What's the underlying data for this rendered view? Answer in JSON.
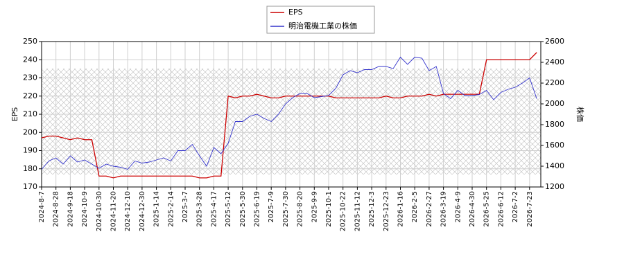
{
  "chart_data": {
    "type": "line",
    "categories": [
      "2024-8-7",
      null,
      "2024-8-28",
      null,
      "2024-9-18",
      null,
      "2024-10-9",
      null,
      "2024-10-30",
      null,
      "2024-11-20",
      null,
      "2024-12-10",
      null,
      "2024-12-30",
      null,
      "2025-1-14",
      null,
      "2025-2-14",
      null,
      "2025-3-7",
      null,
      "2025-3-28",
      null,
      "2025-4-17",
      null,
      "2025-5-12",
      null,
      "2025-5-30",
      null,
      "2025-6-19",
      null,
      "2025-7-9",
      null,
      "2025-7-30",
      null,
      "2025-8-20",
      null,
      "2025-9-9",
      null,
      "2025-10-1",
      null,
      "2025-10-22",
      null,
      "2025-11-12",
      null,
      "2025-12-3",
      null,
      "2025-12-23",
      null,
      "2026-1-16",
      null,
      "2026-2-5",
      null,
      "2026-2-27",
      null,
      "2026-3-19",
      null,
      "2026-4-9",
      null,
      "2026-4-30",
      null,
      "2026-5-25",
      null,
      "2026-6-12",
      null,
      "2026-7-2",
      null,
      "2026-7-23",
      null
    ],
    "series": [
      {
        "name": "EPS",
        "color": "#cc0000",
        "axis": "y",
        "values": [
          197,
          198,
          198,
          197,
          196,
          197,
          196,
          196,
          176,
          176,
          175,
          176,
          176,
          176,
          176,
          176,
          176,
          176,
          176,
          176,
          176,
          176,
          175,
          175,
          176,
          176,
          220,
          219,
          220,
          220,
          221,
          220,
          219,
          219,
          220,
          220,
          220,
          220,
          220,
          220,
          220,
          219,
          219,
          219,
          219,
          219,
          219,
          219,
          220,
          219,
          219,
          220,
          220,
          220,
          221,
          220,
          221,
          221,
          221,
          221,
          221,
          221,
          240,
          240,
          240,
          240,
          240,
          240,
          240,
          244
        ]
      },
      {
        "name": "明治電機工業の株価",
        "color": "#3333cc",
        "axis": "y2",
        "values": [
          1370,
          1450,
          1480,
          1420,
          1500,
          1440,
          1460,
          1420,
          1380,
          1420,
          1400,
          1390,
          1370,
          1450,
          1430,
          1440,
          1460,
          1480,
          1450,
          1550,
          1550,
          1610,
          1500,
          1400,
          1580,
          1520,
          1620,
          1830,
          1830,
          1880,
          1900,
          1860,
          1830,
          1900,
          2000,
          2060,
          2100,
          2100,
          2060,
          2070,
          2080,
          2150,
          2280,
          2320,
          2300,
          2330,
          2330,
          2360,
          2360,
          2340,
          2450,
          2380,
          2450,
          2440,
          2320,
          2360,
          2100,
          2050,
          2130,
          2080,
          2080,
          2090,
          2130,
          2040,
          2110,
          2140,
          2160,
          2200,
          2250,
          2050
        ]
      }
    ],
    "y_label": "EPS",
    "y2_label": "株価",
    "ylim": [
      170,
      250
    ],
    "yticks": [
      170,
      180,
      190,
      200,
      210,
      220,
      230,
      240,
      250
    ],
    "y2lim": [
      1200,
      2600
    ],
    "y2ticks": [
      1200,
      1400,
      1600,
      1800,
      2000,
      2200,
      2400,
      2600
    ],
    "grid": true
  }
}
